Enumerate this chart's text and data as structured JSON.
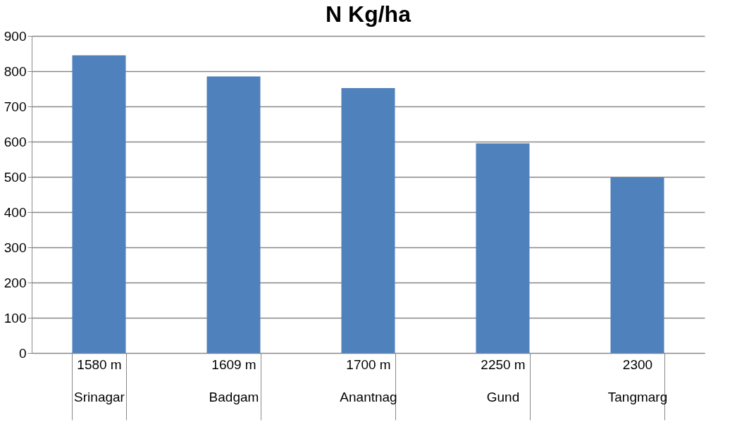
{
  "chart_data": {
    "type": "bar",
    "title": "N  Kg/ha",
    "categories": [
      "1580 m\nSrinagar",
      "1609 m\nBadgam",
      "1700 m\nAnantnag",
      "2250 m\nGund",
      "2300\nTangmarg"
    ],
    "values": [
      845,
      785,
      752,
      595,
      498
    ],
    "color": "#4f81bd",
    "ylim": [
      0,
      900
    ],
    "yticks": [
      0,
      100,
      200,
      300,
      400,
      500,
      600,
      700,
      800,
      900
    ],
    "grid": "y"
  }
}
